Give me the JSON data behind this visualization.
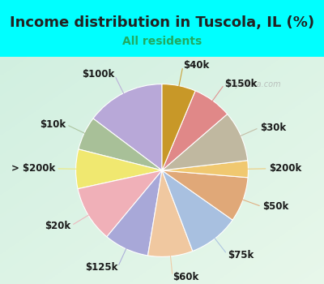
{
  "title": "Income distribution in Tuscola, IL (%)",
  "subtitle": "All residents",
  "background_color": "#00FFFF",
  "watermark": "City-Data.com",
  "labels": [
    "$100k",
    "$10k",
    "> $200k",
    "$20k",
    "$125k",
    "$60k",
    "$75k",
    "$50k",
    "$200k",
    "$30k",
    "$150k",
    "$40k"
  ],
  "values": [
    14,
    6,
    7,
    10,
    8,
    8,
    9,
    8,
    3,
    9,
    7,
    6
  ],
  "colors": [
    "#b8a8d8",
    "#a8c098",
    "#f0e870",
    "#f0b0b8",
    "#a8a8d8",
    "#f0c8a0",
    "#a8c0e0",
    "#e0a878",
    "#f0c870",
    "#c0b8a0",
    "#e08888",
    "#c89828"
  ],
  "label_fontsize": 8.5,
  "title_fontsize": 13,
  "subtitle_fontsize": 10,
  "startangle": 90,
  "title_color": "#222222",
  "subtitle_color": "#20aa60"
}
